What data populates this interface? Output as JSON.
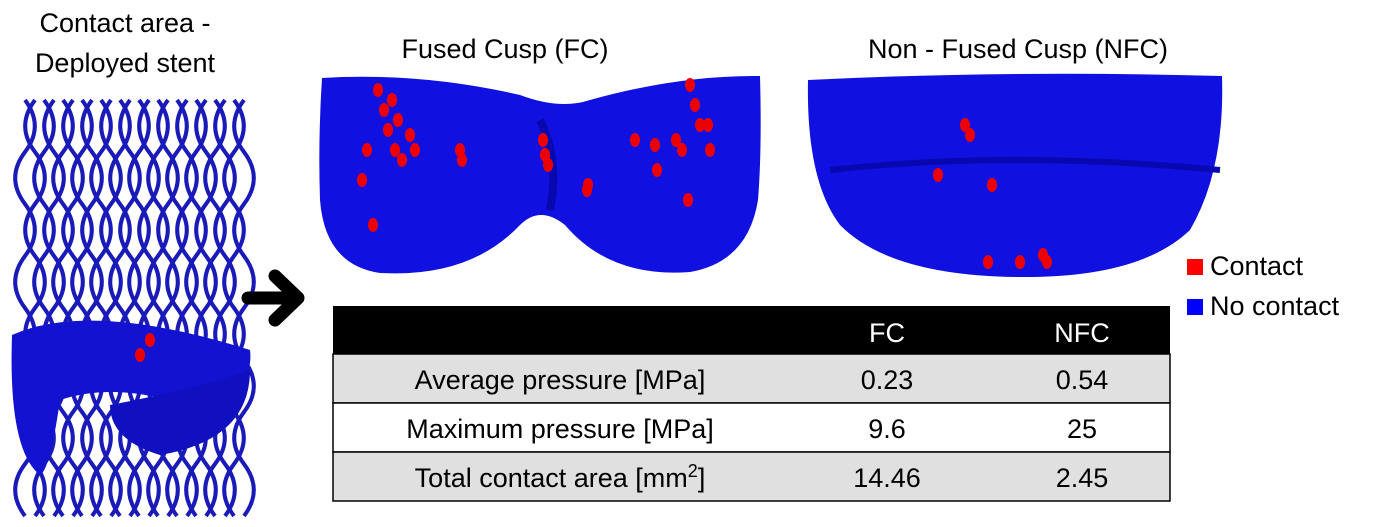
{
  "left_title": {
    "line1": "Contact area -",
    "line2": "Deployed stent"
  },
  "panels": [
    {
      "title": "Fused Cusp (FC)"
    },
    {
      "title": "Non - Fused Cusp (NFC)"
    }
  ],
  "legend": [
    {
      "label": "Contact",
      "color": "#ff0000"
    },
    {
      "label": "No contact",
      "color": "#0000ff"
    }
  ],
  "table": {
    "header": [
      "FC",
      "NFC"
    ],
    "rows": [
      {
        "label": "Average pressure [MPa]",
        "values": [
          0.23,
          0.54
        ]
      },
      {
        "label": "Maximum pressure [MPa]",
        "values": [
          9.6,
          25
        ]
      },
      {
        "label": "Total contact area [mm",
        "label_sup": "2",
        "label_end": "]",
        "values": [
          14.46,
          2.45
        ]
      }
    ]
  }
}
